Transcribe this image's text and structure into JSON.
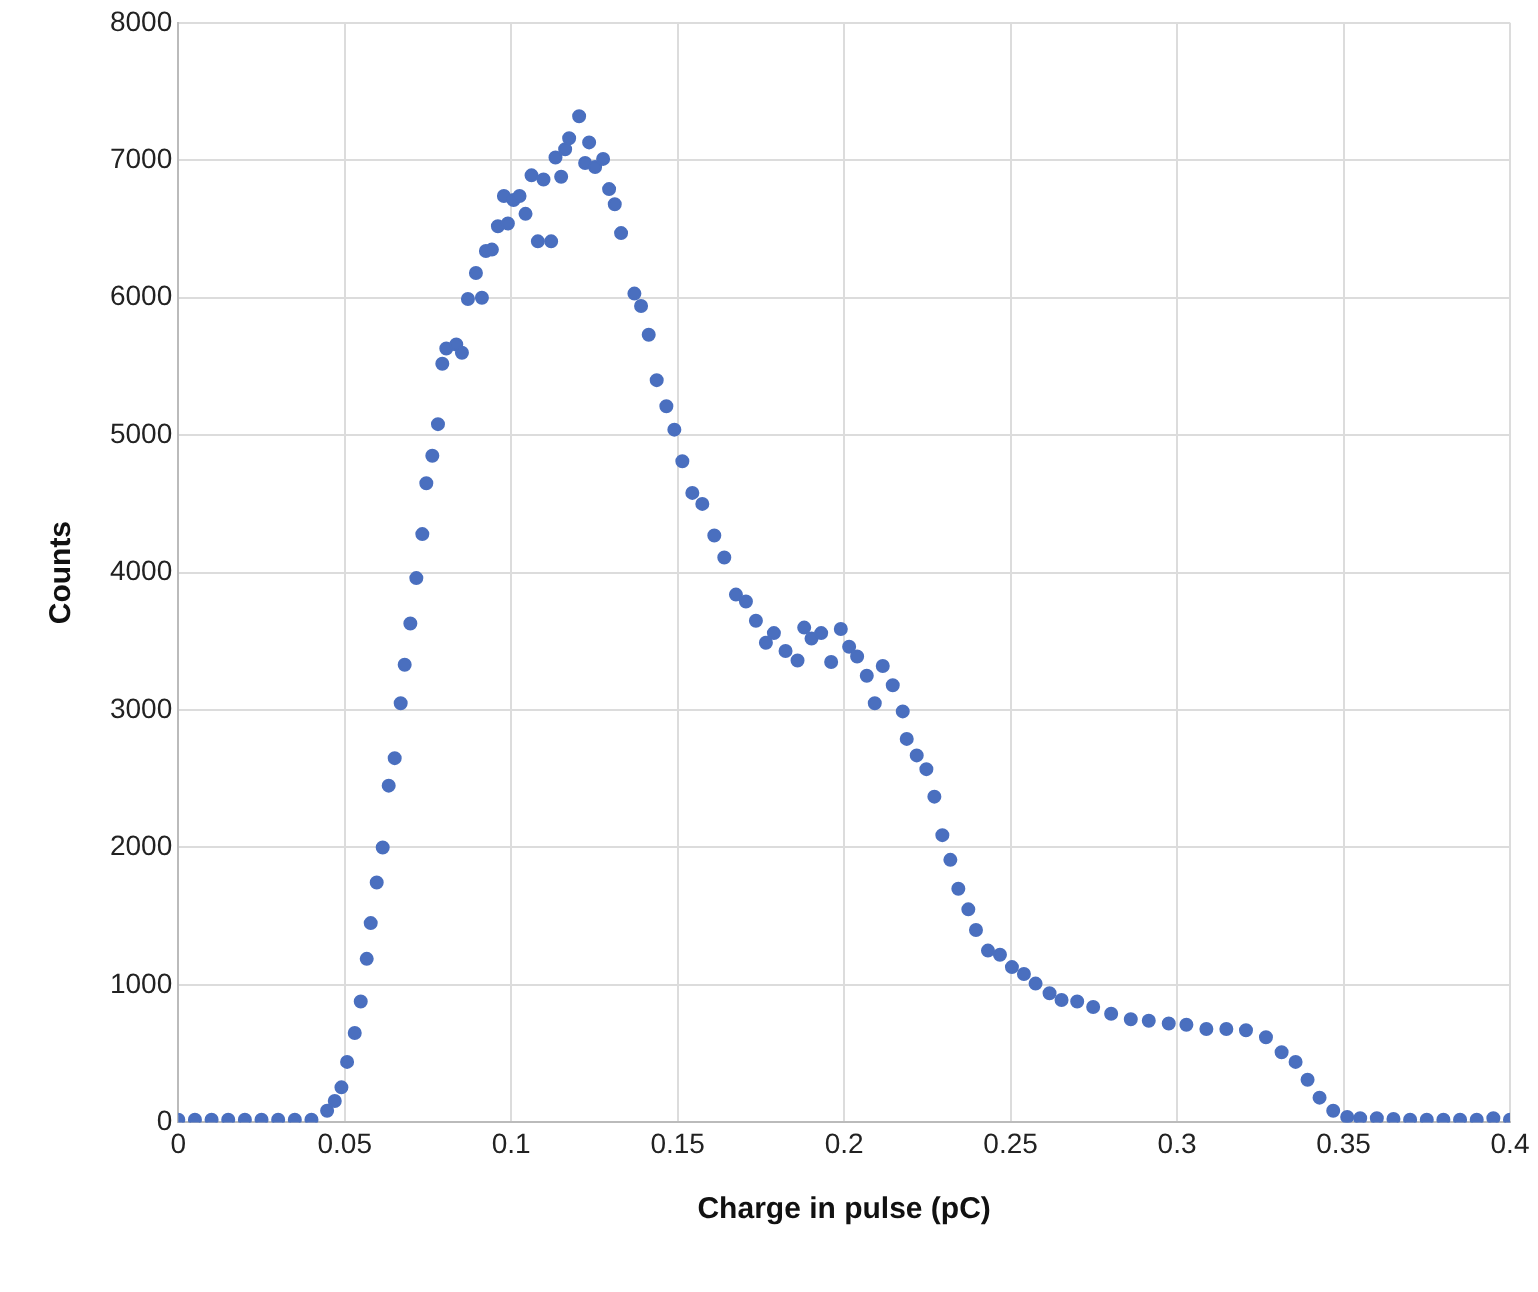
{
  "chart_data": {
    "type": "scatter",
    "xlabel": "Charge in pulse (pC)",
    "ylabel": "Counts",
    "xlim": [
      0,
      0.4
    ],
    "ylim": [
      0,
      8000
    ],
    "xticks": [
      0,
      0.05,
      0.1,
      0.15,
      0.2,
      0.25,
      0.3,
      0.35,
      0.4
    ],
    "yticks": [
      0,
      1000,
      2000,
      3000,
      4000,
      5000,
      6000,
      7000,
      8000
    ],
    "grid": true,
    "legend": false,
    "marker": "circle",
    "series": [
      {
        "color": "#4a6fbf",
        "x": [
          0,
          0.005,
          0.01,
          0.015,
          0.02,
          0.025,
          0.03,
          0.035,
          0.04,
          0.0447,
          0.047,
          0.049,
          0.0507,
          0.053,
          0.0548,
          0.0566,
          0.0578,
          0.0596,
          0.0614,
          0.0632,
          0.065,
          0.0668,
          0.068,
          0.0697,
          0.0715,
          0.0733,
          0.0745,
          0.0763,
          0.078,
          0.0793,
          0.0805,
          0.0835,
          0.0852,
          0.087,
          0.0894,
          0.0912,
          0.0924,
          0.0942,
          0.096,
          0.0978,
          0.099,
          0.1007,
          0.1025,
          0.1043,
          0.1061,
          0.108,
          0.1097,
          0.112,
          0.1133,
          0.115,
          0.1162,
          0.1174,
          0.1204,
          0.1222,
          0.1234,
          0.1252,
          0.1276,
          0.1294,
          0.1311,
          0.133,
          0.137,
          0.139,
          0.1413,
          0.1437,
          0.1466,
          0.149,
          0.1514,
          0.1544,
          0.1574,
          0.161,
          0.164,
          0.1675,
          0.1705,
          0.1735,
          0.1765,
          0.1789,
          0.1824,
          0.186,
          0.188,
          0.1902,
          0.1931,
          0.1961,
          0.199,
          0.2015,
          0.2039,
          0.2068,
          0.2092,
          0.2116,
          0.2146,
          0.2176,
          0.2188,
          0.2218,
          0.2247,
          0.2271,
          0.2295,
          0.2319,
          0.2343,
          0.2373,
          0.2396,
          0.2432,
          0.2468,
          0.2504,
          0.254,
          0.2575,
          0.2617,
          0.2653,
          0.27,
          0.2748,
          0.2802,
          0.2861,
          0.2915,
          0.2975,
          0.3028,
          0.3088,
          0.3148,
          0.3207,
          0.3267,
          0.3314,
          0.3356,
          0.3392,
          0.3428,
          0.3469,
          0.3511,
          0.355,
          0.36,
          0.365,
          0.37,
          0.375,
          0.38,
          0.385,
          0.39,
          0.395,
          0.4
        ],
        "values": [
          20,
          20,
          20,
          20,
          20,
          20,
          20,
          20,
          20,
          85,
          156,
          255,
          440,
          650,
          880,
          1190,
          1450,
          1745,
          2000,
          2450,
          2650,
          3050,
          3330,
          3630,
          3960,
          4280,
          4650,
          4850,
          5080,
          5520,
          5630,
          5660,
          5600,
          5990,
          6180,
          6000,
          6340,
          6350,
          6520,
          6740,
          6540,
          6710,
          6740,
          6610,
          6890,
          6410,
          6860,
          6410,
          7020,
          6880,
          7080,
          7160,
          7320,
          6980,
          7130,
          6950,
          7010,
          6790,
          6680,
          6470,
          6030,
          5940,
          5730,
          5400,
          5210,
          5040,
          4810,
          4580,
          4500,
          4270,
          4110,
          3840,
          3790,
          3650,
          3490,
          3560,
          3430,
          3360,
          3600,
          3520,
          3560,
          3350,
          3590,
          3460,
          3390,
          3250,
          3050,
          3320,
          3180,
          2990,
          2790,
          2670,
          2570,
          2370,
          2090,
          1910,
          1700,
          1550,
          1400,
          1250,
          1220,
          1130,
          1080,
          1010,
          940,
          890,
          880,
          840,
          790,
          750,
          740,
          720,
          710,
          680,
          680,
          670,
          620,
          510,
          440,
          310,
          180,
          85,
          40,
          30,
          30,
          25,
          20,
          20,
          20,
          20,
          20,
          30,
          20
        ]
      }
    ]
  }
}
